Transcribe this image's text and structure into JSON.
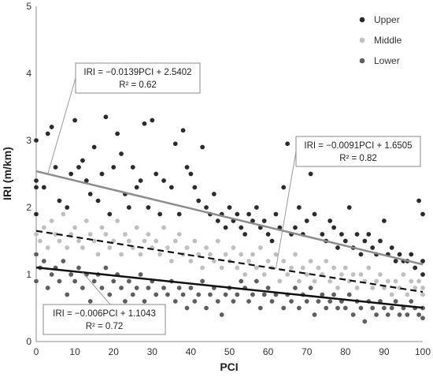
{
  "chart_data": {
    "type": "scatter",
    "title": "",
    "xlabel": "PCI",
    "ylabel": "IRI (m/km)",
    "xlim": [
      0,
      100
    ],
    "ylim": [
      0,
      5
    ],
    "xticks": [
      "0",
      "10",
      "20",
      "30",
      "40",
      "50",
      "60",
      "70",
      "80",
      "90",
      "100"
    ],
    "yticks": [
      "0",
      "1",
      "2",
      "3",
      "4",
      "5"
    ],
    "grid": false,
    "legend_position": "top-right",
    "series": [
      {
        "name": "Upper",
        "color": "#2b2b2b",
        "points": [
          [
            0,
            3.0
          ],
          [
            0,
            2.4
          ],
          [
            0,
            2.3
          ],
          [
            0,
            1.9
          ],
          [
            2,
            2.3
          ],
          [
            3,
            3.1
          ],
          [
            4,
            3.2
          ],
          [
            5,
            2.6
          ],
          [
            6,
            2.1
          ],
          [
            8,
            2.0
          ],
          [
            9,
            2.5
          ],
          [
            10,
            3.3
          ],
          [
            11,
            2.6
          ],
          [
            12,
            2.7
          ],
          [
            13,
            2.4
          ],
          [
            14,
            2.2
          ],
          [
            15,
            2.9
          ],
          [
            16,
            2.1
          ],
          [
            17,
            2.5
          ],
          [
            18,
            3.35
          ],
          [
            19,
            1.9
          ],
          [
            20,
            2.6
          ],
          [
            21,
            3.1
          ],
          [
            22,
            2.8
          ],
          [
            23,
            2.2
          ],
          [
            24,
            2.0
          ],
          [
            25,
            2.6
          ],
          [
            26,
            2.3
          ],
          [
            27,
            2.4
          ],
          [
            28,
            3.25
          ],
          [
            29,
            2.0
          ],
          [
            30,
            3.3
          ],
          [
            31,
            2.5
          ],
          [
            32,
            1.9
          ],
          [
            33,
            2.4
          ],
          [
            35,
            2.3
          ],
          [
            36,
            2.95
          ],
          [
            37,
            1.9
          ],
          [
            38,
            3.15
          ],
          [
            39,
            2.6
          ],
          [
            40,
            2.5
          ],
          [
            41,
            2.3
          ],
          [
            42,
            2.1
          ],
          [
            43,
            2.9
          ],
          [
            44,
            2.0
          ],
          [
            45,
            1.9
          ],
          [
            46,
            2.2
          ],
          [
            47,
            1.8
          ],
          [
            48,
            1.9
          ],
          [
            49,
            1.7
          ],
          [
            50,
            2.0
          ],
          [
            51,
            1.8
          ],
          [
            52,
            1.9
          ],
          [
            53,
            1.7
          ],
          [
            54,
            1.6
          ],
          [
            55,
            1.9
          ],
          [
            56,
            1.8
          ],
          [
            57,
            2.0
          ],
          [
            58,
            1.7
          ],
          [
            59,
            1.8
          ],
          [
            60,
            1.6
          ],
          [
            61,
            1.5
          ],
          [
            62,
            1.9
          ],
          [
            63,
            1.7
          ],
          [
            64,
            2.3
          ],
          [
            65,
            2.95
          ],
          [
            66,
            1.6
          ],
          [
            67,
            1.7
          ],
          [
            68,
            2.0
          ],
          [
            69,
            1.6
          ],
          [
            70,
            1.8
          ],
          [
            71,
            2.5
          ],
          [
            72,
            1.9
          ],
          [
            73,
            2.7
          ],
          [
            74,
            1.6
          ],
          [
            75,
            1.5
          ],
          [
            76,
            1.8
          ],
          [
            77,
            1.7
          ],
          [
            78,
            1.4
          ],
          [
            79,
            1.6
          ],
          [
            80,
            1.5
          ],
          [
            81,
            2.0
          ],
          [
            82,
            1.4
          ],
          [
            83,
            1.6
          ],
          [
            84,
            1.3
          ],
          [
            85,
            1.5
          ],
          [
            86,
            1.6
          ],
          [
            87,
            1.4
          ],
          [
            88,
            1.3
          ],
          [
            89,
            1.5
          ],
          [
            90,
            1.8
          ],
          [
            91,
            1.3
          ],
          [
            92,
            1.4
          ],
          [
            93,
            1.2
          ],
          [
            94,
            1.3
          ],
          [
            95,
            1.2
          ],
          [
            96,
            1.2
          ],
          [
            97,
            1.3
          ],
          [
            98,
            1.1
          ],
          [
            99,
            2.1
          ],
          [
            100,
            1.9
          ],
          [
            100,
            1.2
          ],
          [
            100,
            1.0
          ]
        ]
      },
      {
        "name": "Middle",
        "color": "#bfbfbf",
        "points": [
          [
            0,
            1.6
          ],
          [
            1,
            1.5
          ],
          [
            2,
            1.7
          ],
          [
            3,
            1.4
          ],
          [
            4,
            1.8
          ],
          [
            5,
            1.6
          ],
          [
            6,
            1.5
          ],
          [
            7,
            1.9
          ],
          [
            8,
            1.4
          ],
          [
            9,
            1.6
          ],
          [
            10,
            1.7
          ],
          [
            11,
            1.5
          ],
          [
            12,
            1.4
          ],
          [
            13,
            1.8
          ],
          [
            14,
            1.6
          ],
          [
            15,
            1.5
          ],
          [
            16,
            1.3
          ],
          [
            17,
            1.7
          ],
          [
            18,
            1.6
          ],
          [
            19,
            1.4
          ],
          [
            20,
            1.5
          ],
          [
            21,
            1.8
          ],
          [
            22,
            1.3
          ],
          [
            23,
            1.6
          ],
          [
            24,
            1.5
          ],
          [
            25,
            1.4
          ],
          [
            26,
            1.7
          ],
          [
            27,
            1.3
          ],
          [
            28,
            1.5
          ],
          [
            29,
            1.6
          ],
          [
            30,
            1.4
          ],
          [
            31,
            1.5
          ],
          [
            32,
            1.3
          ],
          [
            33,
            1.7
          ],
          [
            34,
            1.4
          ],
          [
            35,
            1.2
          ],
          [
            36,
            1.5
          ],
          [
            37,
            1.6
          ],
          [
            38,
            1.3
          ],
          [
            39,
            1.4
          ],
          [
            40,
            1.2
          ],
          [
            41,
            1.5
          ],
          [
            42,
            1.3
          ],
          [
            43,
            1.1
          ],
          [
            44,
            1.4
          ],
          [
            45,
            1.3
          ],
          [
            46,
            1.2
          ],
          [
            47,
            1.5
          ],
          [
            48,
            1.1
          ],
          [
            49,
            1.3
          ],
          [
            50,
            1.2
          ],
          [
            51,
            1.4
          ],
          [
            52,
            1.1
          ],
          [
            53,
            1.3
          ],
          [
            54,
            1.0
          ],
          [
            55,
            1.2
          ],
          [
            56,
            1.3
          ],
          [
            57,
            1.1
          ],
          [
            58,
            1.4
          ],
          [
            59,
            1.0
          ],
          [
            60,
            1.2
          ],
          [
            61,
            1.1
          ],
          [
            62,
            1.3
          ],
          [
            63,
            0.9
          ],
          [
            64,
            1.2
          ],
          [
            65,
            1.0
          ],
          [
            66,
            1.1
          ],
          [
            67,
            1.3
          ],
          [
            68,
            0.9
          ],
          [
            69,
            1.1
          ],
          [
            70,
            1.0
          ],
          [
            71,
            1.2
          ],
          [
            72,
            0.9
          ],
          [
            73,
            1.1
          ],
          [
            74,
            1.0
          ],
          [
            75,
            1.2
          ],
          [
            76,
            0.9
          ],
          [
            77,
            1.1
          ],
          [
            78,
            0.8
          ],
          [
            79,
            1.0
          ],
          [
            80,
            1.1
          ],
          [
            81,
            0.9
          ],
          [
            82,
            1.0
          ],
          [
            83,
            0.8
          ],
          [
            84,
            1.0
          ],
          [
            85,
            0.9
          ],
          [
            86,
            1.1
          ],
          [
            87,
            0.8
          ],
          [
            88,
            0.9
          ],
          [
            89,
            1.0
          ],
          [
            90,
            0.8
          ],
          [
            91,
            0.9
          ],
          [
            92,
            0.7
          ],
          [
            93,
            0.9
          ],
          [
            94,
            0.8
          ],
          [
            95,
            1.0
          ],
          [
            96,
            0.7
          ],
          [
            97,
            0.9
          ],
          [
            98,
            0.8
          ],
          [
            99,
            0.9
          ],
          [
            100,
            0.8
          ],
          [
            100,
            1.0
          ],
          [
            100,
            0.7
          ]
        ]
      },
      {
        "name": "Lower",
        "color": "#5e5e5e",
        "points": [
          [
            0,
            1.3
          ],
          [
            0,
            0.9
          ],
          [
            1,
            1.1
          ],
          [
            2,
            1.2
          ],
          [
            3,
            0.8
          ],
          [
            4,
            1.0
          ],
          [
            5,
            1.1
          ],
          [
            6,
            0.9
          ],
          [
            7,
            1.2
          ],
          [
            8,
            0.7
          ],
          [
            9,
            1.0
          ],
          [
            10,
            0.9
          ],
          [
            11,
            1.1
          ],
          [
            12,
            0.8
          ],
          [
            13,
            1.0
          ],
          [
            14,
            0.6
          ],
          [
            15,
            0.9
          ],
          [
            16,
            1.0
          ],
          [
            17,
            0.8
          ],
          [
            18,
            1.1
          ],
          [
            19,
            0.7
          ],
          [
            20,
            0.9
          ],
          [
            21,
            1.0
          ],
          [
            22,
            0.8
          ],
          [
            23,
            0.6
          ],
          [
            24,
            0.9
          ],
          [
            25,
            0.7
          ],
          [
            26,
            0.8
          ],
          [
            27,
            1.0
          ],
          [
            28,
            0.6
          ],
          [
            29,
            0.8
          ],
          [
            30,
            0.9
          ],
          [
            31,
            0.7
          ],
          [
            32,
            0.5
          ],
          [
            33,
            0.8
          ],
          [
            34,
            0.7
          ],
          [
            35,
            0.9
          ],
          [
            36,
            0.6
          ],
          [
            37,
            0.8
          ],
          [
            38,
            0.7
          ],
          [
            39,
            0.5
          ],
          [
            40,
            0.8
          ],
          [
            41,
            0.6
          ],
          [
            42,
            0.7
          ],
          [
            43,
            0.9
          ],
          [
            44,
            0.5
          ],
          [
            45,
            0.7
          ],
          [
            46,
            0.8
          ],
          [
            47,
            0.6
          ],
          [
            48,
            0.4
          ],
          [
            49,
            0.7
          ],
          [
            50,
            0.8
          ],
          [
            51,
            0.6
          ],
          [
            52,
            0.7
          ],
          [
            53,
            0.9
          ],
          [
            54,
            0.8
          ],
          [
            55,
            0.6
          ],
          [
            56,
            0.7
          ],
          [
            57,
            0.9
          ],
          [
            58,
            0.5
          ],
          [
            59,
            0.7
          ],
          [
            60,
            0.8
          ],
          [
            61,
            0.6
          ],
          [
            62,
            0.7
          ],
          [
            63,
            0.9
          ],
          [
            64,
            0.5
          ],
          [
            65,
            0.7
          ],
          [
            66,
            0.6
          ],
          [
            67,
            0.8
          ],
          [
            68,
            0.5
          ],
          [
            69,
            0.7
          ],
          [
            70,
            0.6
          ],
          [
            71,
            0.8
          ],
          [
            72,
            0.4
          ],
          [
            73,
            0.6
          ],
          [
            74,
            0.7
          ],
          [
            75,
            0.5
          ],
          [
            76,
            0.6
          ],
          [
            77,
            0.7
          ],
          [
            78,
            0.5
          ],
          [
            79,
            0.6
          ],
          [
            80,
            0.5
          ],
          [
            81,
            0.7
          ],
          [
            82,
            0.4
          ],
          [
            83,
            0.6
          ],
          [
            84,
            0.5
          ],
          [
            85,
            0.3
          ],
          [
            86,
            0.6
          ],
          [
            87,
            0.5
          ],
          [
            88,
            0.4
          ],
          [
            89,
            0.6
          ],
          [
            90,
            0.5
          ],
          [
            91,
            0.4
          ],
          [
            92,
            0.5
          ],
          [
            93,
            0.6
          ],
          [
            94,
            0.4
          ],
          [
            95,
            0.5
          ],
          [
            96,
            0.4
          ],
          [
            97,
            0.6
          ],
          [
            98,
            0.5
          ],
          [
            99,
            0.4
          ],
          [
            100,
            0.7
          ],
          [
            100,
            0.5
          ],
          [
            100,
            0.35
          ]
        ]
      }
    ],
    "trendlines": [
      {
        "series": "Upper",
        "slope": -0.0139,
        "intercept": 2.5402,
        "style": "solid",
        "color": "#8c8c8c",
        "equation": "IRI = −0.0139PCI + 2.5402",
        "r2": "R² = 0.62"
      },
      {
        "series": "Middle",
        "slope": -0.0091,
        "intercept": 1.6505,
        "style": "dashed",
        "color": "#111111",
        "equation": "IRI = −0.0091PCI + 1.6505",
        "r2": "R² = 0.82"
      },
      {
        "series": "Lower",
        "slope": -0.006,
        "intercept": 1.1043,
        "style": "solid",
        "color": "#111111",
        "equation": "IRI = −0.006PCI + 1.1043",
        "r2": "R² = 0.72"
      }
    ]
  }
}
